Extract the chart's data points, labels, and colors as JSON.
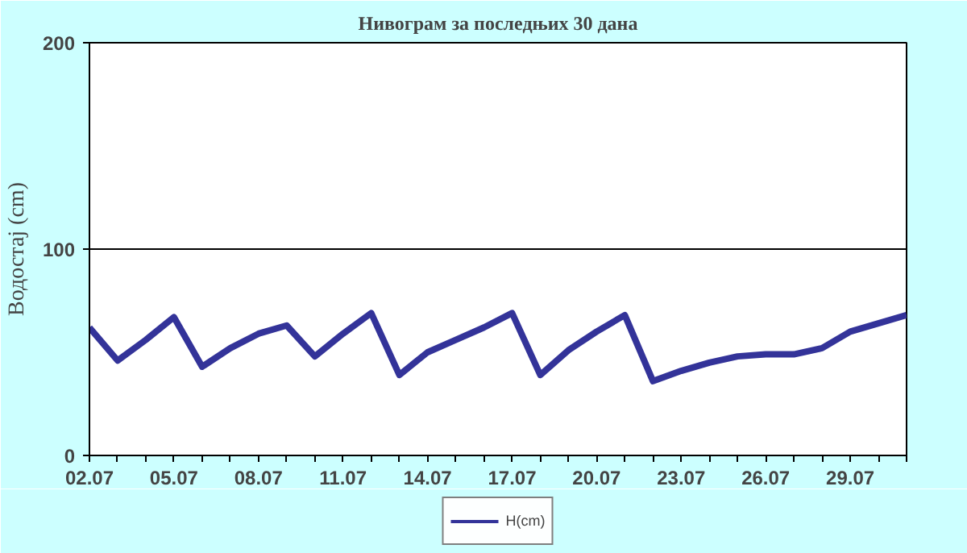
{
  "chart_data": {
    "type": "line",
    "title": "Нивограм за последњих 30 дана",
    "ylabel": "Водостај (cm)",
    "categories": [
      "02.07",
      null,
      null,
      "05.07",
      null,
      null,
      "08.07",
      null,
      null,
      "11.07",
      null,
      null,
      "14.07",
      null,
      null,
      "17.07",
      null,
      null,
      "20.07",
      null,
      null,
      "23.07",
      null,
      null,
      "26.07",
      null,
      null,
      "29.07",
      null,
      null
    ],
    "series": [
      {
        "name": "H(cm)",
        "color": "#333399",
        "values": [
          62,
          46,
          56,
          67,
          43,
          52,
          59,
          63,
          48,
          59,
          69,
          39,
          50,
          56,
          62,
          69,
          39,
          51,
          60,
          68,
          36,
          41,
          45,
          48,
          49,
          49,
          52,
          60,
          64,
          68
        ]
      }
    ],
    "ylim": [
      0,
      200
    ],
    "yticks": [
      0,
      100,
      200
    ],
    "grid": "y",
    "legend": "bottom",
    "marker": "none",
    "line_style": "solid"
  }
}
